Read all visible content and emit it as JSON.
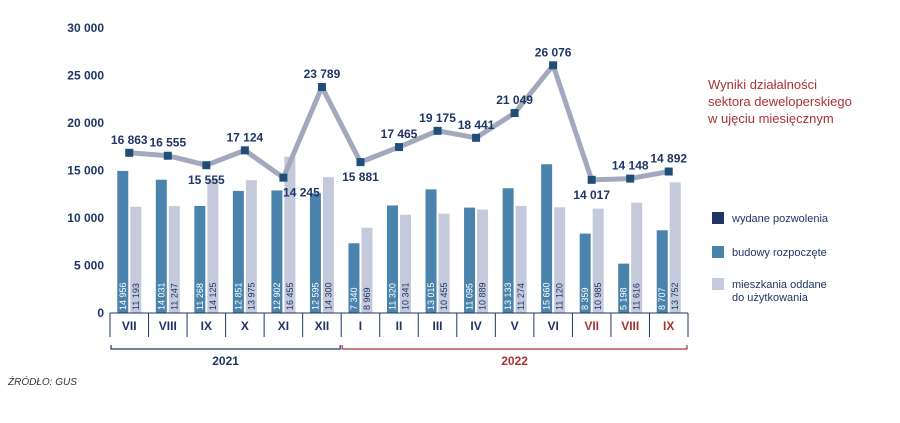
{
  "chart_data": {
    "type": "bar",
    "title_lines": [
      "Wyniki  działalności",
      "sektora deweloperskiego",
      "w ujęciu miesięcznym"
    ],
    "source": "ŹRÓDŁO: GUS",
    "ylim": [
      0,
      30000
    ],
    "y_ticks": [
      "0",
      "5 000",
      "10 000",
      "15 000",
      "20 000",
      "25 000",
      "30 000"
    ],
    "categories": [
      "VII",
      "VIII",
      "IX",
      "X",
      "XI",
      "XII",
      "I",
      "II",
      "III",
      "IV",
      "V",
      "VI",
      "VII",
      "VIII",
      "IX"
    ],
    "category_colors": [
      "#1f3566",
      "#1f3566",
      "#1f3566",
      "#1f3566",
      "#1f3566",
      "#1f3566",
      "#1f3566",
      "#1f3566",
      "#1f3566",
      "#1f3566",
      "#1f3566",
      "#1f3566",
      "#a83234",
      "#a83234",
      "#a83234"
    ],
    "years": [
      {
        "label": "2021",
        "from": 0,
        "to": 5,
        "color": "#1f3566"
      },
      {
        "label": "2022",
        "from": 6,
        "to": 14,
        "color": "#a83234"
      }
    ],
    "series": [
      {
        "name": "wydane pozwolenia",
        "kind": "line",
        "color": "#1f4e79",
        "line_color": "#a3a9bd",
        "values": [
          16863,
          16555,
          15555,
          17124,
          14245,
          23789,
          15881,
          17465,
          19175,
          18441,
          21049,
          26076,
          14017,
          14148,
          14892
        ],
        "labels": [
          "16 863",
          "16 555",
          "15 555",
          "17 124",
          "14 245",
          "23 789",
          "15 881",
          "17 465",
          "19 175",
          "18 441",
          "21 049",
          "26 076",
          "14 017",
          "14 148",
          "14 892"
        ]
      },
      {
        "name": "budowy rozpoczęte",
        "kind": "bar",
        "color": "#4a84ad",
        "values": [
          14956,
          14031,
          11268,
          12851,
          12902,
          12595,
          7340,
          11320,
          13015,
          11095,
          13133,
          15660,
          8359,
          5198,
          8707
        ],
        "labels": [
          "14 956",
          "14 031",
          "11 268",
          "12 851",
          "12 902",
          "12 595",
          "7 340",
          "11 320",
          "13 015",
          "11 095",
          "13 133",
          "15 660",
          "8 359",
          "5 198",
          "8 707"
        ]
      },
      {
        "name": "mieszkania oddane\ndo użytkowania",
        "kind": "bar",
        "color": "#c4c9dc",
        "values": [
          11193,
          11247,
          14125,
          13975,
          16455,
          14300,
          8969,
          10341,
          10455,
          10889,
          11274,
          11120,
          10985,
          11616,
          13752
        ],
        "labels": [
          "11 193",
          "11 247",
          "14 125",
          "13 975",
          "16 455",
          "14 300",
          "8 969",
          "10 341",
          "10 455",
          "10 889",
          "11 274",
          "11 120",
          "10 985",
          "11 616",
          "13 752"
        ]
      }
    ],
    "legend": [
      {
        "name": "wydane pozwolenia",
        "color": "#1f3566"
      },
      {
        "name": "budowy rozpoczęte",
        "color": "#4a84ad"
      },
      {
        "name_lines": [
          "mieszkania oddane",
          "do użytkowania"
        ],
        "color": "#c4c9dc"
      }
    ],
    "grid": false
  }
}
